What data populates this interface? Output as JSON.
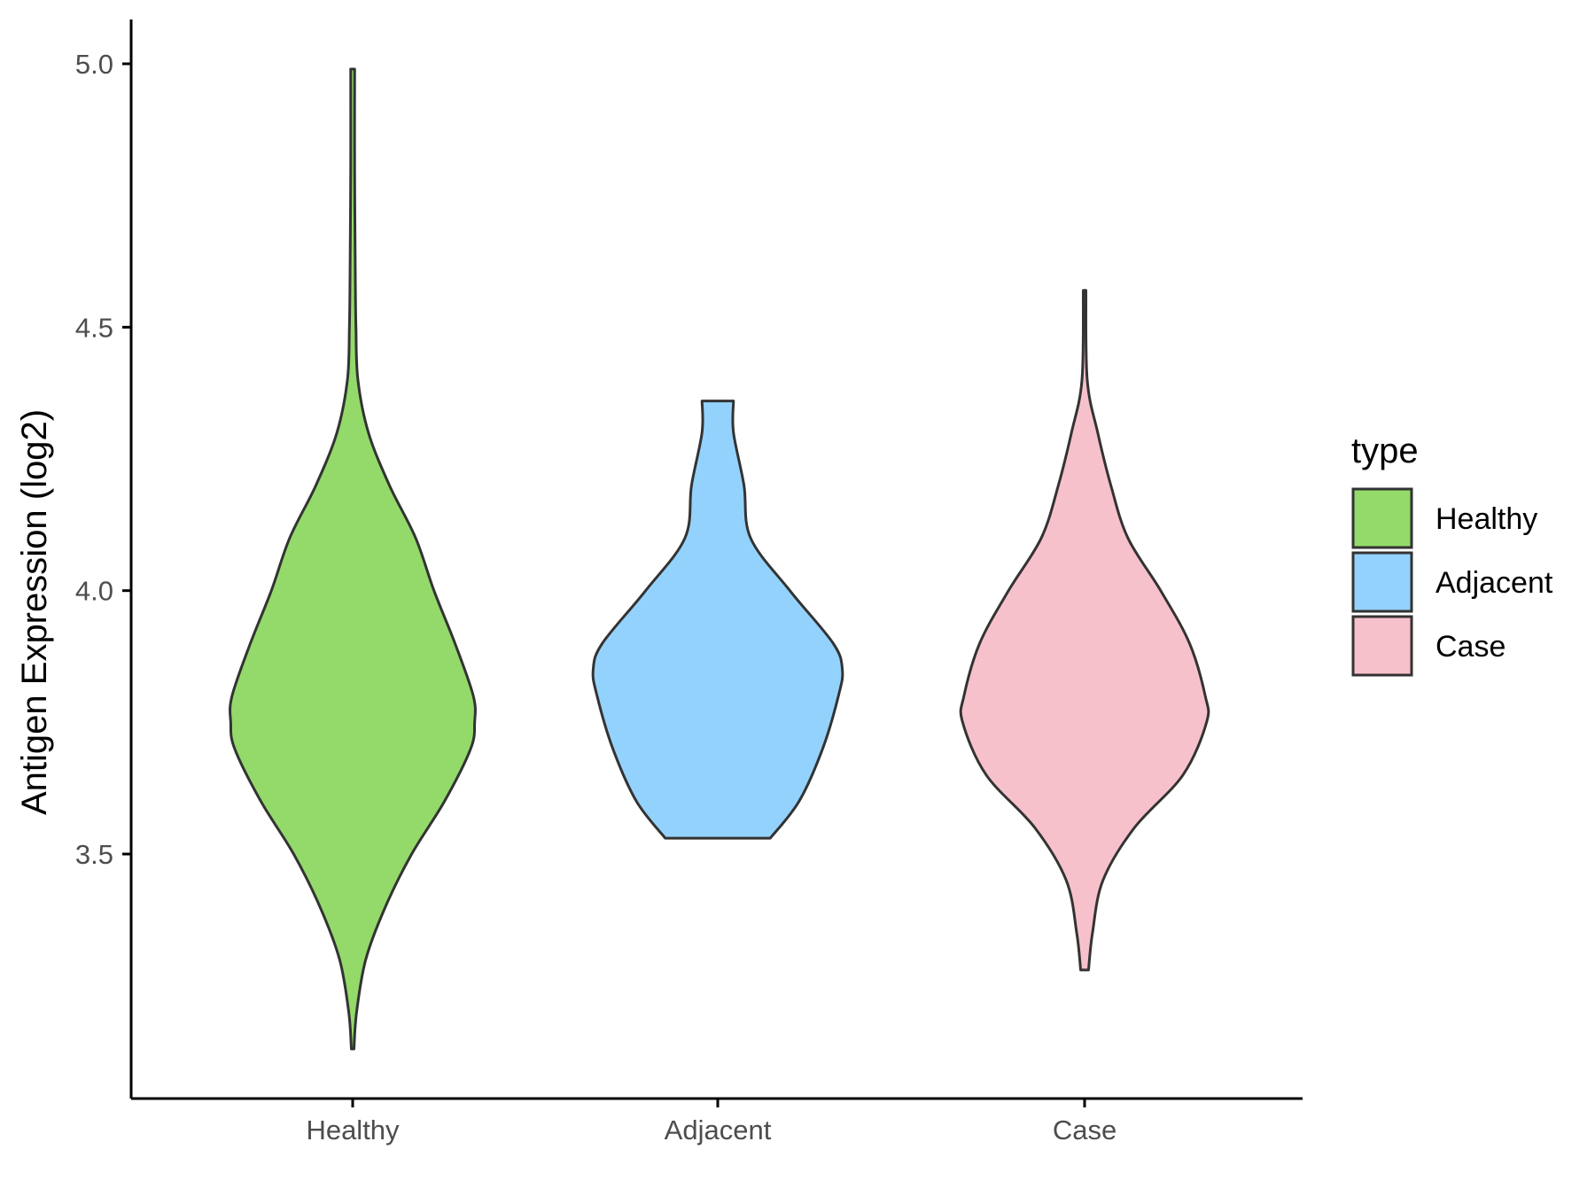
{
  "chart_data": {
    "type": "violin",
    "title": "",
    "xlabel": "",
    "ylabel": "Antigen Expression (log2)",
    "ylim": [
      3.1,
      5.08
    ],
    "y_ticks": [
      "3.5",
      "4.0",
      "4.5",
      "5.0"
    ],
    "categories": [
      "Healthy",
      "Adjacent",
      "Case"
    ],
    "grid": false,
    "legend": {
      "title": "type",
      "position": "right",
      "entries": [
        "Healthy",
        "Adjacent",
        "Case"
      ]
    },
    "colors": {
      "Healthy": "#93DA6A",
      "Adjacent": "#94D2FE",
      "Case": "#F7C1CB",
      "outline": "#333333"
    },
    "series": [
      {
        "name": "Healthy",
        "min": 3.13,
        "max": 4.99,
        "density_profile": [
          [
            3.13,
            0.01
          ],
          [
            3.2,
            0.03
          ],
          [
            3.3,
            0.1
          ],
          [
            3.4,
            0.25
          ],
          [
            3.5,
            0.45
          ],
          [
            3.6,
            0.7
          ],
          [
            3.7,
            0.9
          ],
          [
            3.75,
            0.93
          ],
          [
            3.8,
            0.92
          ],
          [
            3.9,
            0.78
          ],
          [
            4.0,
            0.62
          ],
          [
            4.1,
            0.48
          ],
          [
            4.2,
            0.28
          ],
          [
            4.3,
            0.12
          ],
          [
            4.4,
            0.04
          ],
          [
            4.5,
            0.025
          ],
          [
            4.6,
            0.02
          ],
          [
            4.8,
            0.015
          ],
          [
            4.99,
            0.015
          ]
        ]
      },
      {
        "name": "Adjacent",
        "min": 3.53,
        "max": 4.36,
        "density_profile": [
          [
            3.53,
            0.4
          ],
          [
            3.6,
            0.62
          ],
          [
            3.7,
            0.8
          ],
          [
            3.8,
            0.92
          ],
          [
            3.85,
            0.95
          ],
          [
            3.9,
            0.88
          ],
          [
            4.0,
            0.55
          ],
          [
            4.1,
            0.25
          ],
          [
            4.2,
            0.2
          ],
          [
            4.3,
            0.12
          ],
          [
            4.36,
            0.12
          ]
        ]
      },
      {
        "name": "Case",
        "min": 3.28,
        "max": 4.57,
        "density_profile": [
          [
            3.28,
            0.03
          ],
          [
            3.35,
            0.06
          ],
          [
            3.45,
            0.14
          ],
          [
            3.55,
            0.38
          ],
          [
            3.65,
            0.75
          ],
          [
            3.75,
            0.93
          ],
          [
            3.8,
            0.92
          ],
          [
            3.9,
            0.8
          ],
          [
            4.0,
            0.58
          ],
          [
            4.1,
            0.33
          ],
          [
            4.2,
            0.2
          ],
          [
            4.3,
            0.1
          ],
          [
            4.4,
            0.02
          ],
          [
            4.57,
            0.01
          ]
        ]
      }
    ]
  }
}
